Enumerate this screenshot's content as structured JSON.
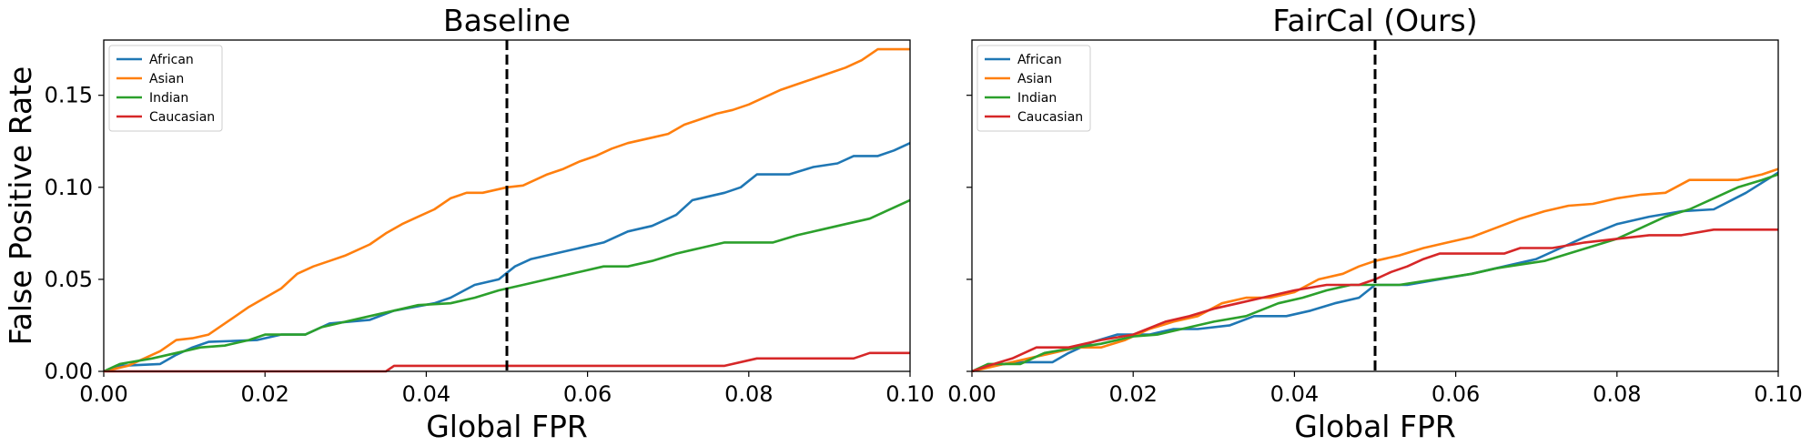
{
  "chart_data": [
    {
      "type": "line",
      "title": "Baseline",
      "xlabel": "Global FPR",
      "ylabel": "False Positive Rate",
      "xlim": [
        0,
        0.1
      ],
      "ylim": [
        0,
        0.18
      ],
      "x_ticks": [
        "0.00",
        "0.02",
        "0.04",
        "0.06",
        "0.08",
        "0.10"
      ],
      "y_ticks": [
        "0.00",
        "0.05",
        "0.10",
        "0.15"
      ],
      "reference_line_x": 0.05,
      "legend_position": "top-left",
      "series": [
        {
          "name": "African",
          "color": "#1f77b4",
          "x": [
            0,
            0.002,
            0.007,
            0.009,
            0.011,
            0.013,
            0.019,
            0.022,
            0.025,
            0.028,
            0.033,
            0.036,
            0.041,
            0.043,
            0.046,
            0.049,
            0.051,
            0.053,
            0.058,
            0.062,
            0.065,
            0.068,
            0.071,
            0.073,
            0.077,
            0.079,
            0.081,
            0.085,
            0.088,
            0.091,
            0.093,
            0.096,
            0.098,
            0.1
          ],
          "y": [
            0,
            0.003,
            0.004,
            0.009,
            0.013,
            0.016,
            0.017,
            0.02,
            0.02,
            0.026,
            0.028,
            0.033,
            0.037,
            0.04,
            0.047,
            0.05,
            0.057,
            0.061,
            0.066,
            0.07,
            0.076,
            0.079,
            0.085,
            0.093,
            0.097,
            0.1,
            0.107,
            0.107,
            0.111,
            0.113,
            0.117,
            0.117,
            0.12,
            0.124
          ]
        },
        {
          "name": "Asian",
          "color": "#ff7f0e",
          "x": [
            0,
            0.003,
            0.007,
            0.009,
            0.011,
            0.013,
            0.016,
            0.018,
            0.02,
            0.022,
            0.024,
            0.026,
            0.028,
            0.03,
            0.033,
            0.035,
            0.037,
            0.039,
            0.041,
            0.043,
            0.045,
            0.047,
            0.05,
            0.052,
            0.055,
            0.057,
            0.059,
            0.061,
            0.063,
            0.065,
            0.068,
            0.07,
            0.072,
            0.074,
            0.076,
            0.078,
            0.08,
            0.082,
            0.084,
            0.086,
            0.088,
            0.09,
            0.092,
            0.094,
            0.096,
            0.1
          ],
          "y": [
            0,
            0.003,
            0.011,
            0.017,
            0.018,
            0.02,
            0.029,
            0.035,
            0.04,
            0.045,
            0.053,
            0.057,
            0.06,
            0.063,
            0.069,
            0.075,
            0.08,
            0.084,
            0.088,
            0.094,
            0.097,
            0.097,
            0.1,
            0.101,
            0.107,
            0.11,
            0.114,
            0.117,
            0.121,
            0.124,
            0.127,
            0.129,
            0.134,
            0.137,
            0.14,
            0.142,
            0.145,
            0.149,
            0.153,
            0.156,
            0.159,
            0.162,
            0.165,
            0.169,
            0.175,
            0.175
          ]
        },
        {
          "name": "Indian",
          "color": "#2ca02c",
          "x": [
            0,
            0.002,
            0.006,
            0.009,
            0.012,
            0.015,
            0.018,
            0.02,
            0.025,
            0.027,
            0.03,
            0.033,
            0.036,
            0.039,
            0.043,
            0.046,
            0.049,
            0.052,
            0.055,
            0.058,
            0.062,
            0.065,
            0.068,
            0.071,
            0.074,
            0.077,
            0.08,
            0.083,
            0.086,
            0.089,
            0.092,
            0.095,
            0.097,
            0.1
          ],
          "y": [
            0,
            0.004,
            0.007,
            0.01,
            0.013,
            0.014,
            0.017,
            0.02,
            0.02,
            0.024,
            0.027,
            0.03,
            0.033,
            0.036,
            0.037,
            0.04,
            0.044,
            0.047,
            0.05,
            0.053,
            0.057,
            0.057,
            0.06,
            0.064,
            0.067,
            0.07,
            0.07,
            0.07,
            0.074,
            0.077,
            0.08,
            0.083,
            0.087,
            0.093
          ]
        },
        {
          "name": "Caucasian",
          "color": "#d62728",
          "x": [
            0,
            0.035,
            0.036,
            0.077,
            0.081,
            0.093,
            0.095,
            0.1
          ],
          "y": [
            0,
            0,
            0.003,
            0.003,
            0.007,
            0.007,
            0.01,
            0.01
          ]
        }
      ]
    },
    {
      "type": "line",
      "title": "FairCal (Ours)",
      "xlabel": "Global FPR",
      "ylabel": "",
      "xlim": [
        0,
        0.1
      ],
      "ylim": [
        0,
        0.18
      ],
      "x_ticks": [
        "0.00",
        "0.02",
        "0.04",
        "0.06",
        "0.08",
        "0.10"
      ],
      "y_ticks": [],
      "reference_line_x": 0.05,
      "legend_position": "top-left",
      "series": [
        {
          "name": "African",
          "color": "#1f77b4",
          "x": [
            0,
            0.002,
            0.006,
            0.01,
            0.012,
            0.015,
            0.018,
            0.022,
            0.025,
            0.028,
            0.032,
            0.035,
            0.039,
            0.042,
            0.045,
            0.048,
            0.05,
            0.054,
            0.058,
            0.062,
            0.066,
            0.07,
            0.073,
            0.076,
            0.08,
            0.084,
            0.088,
            0.092,
            0.096,
            0.1
          ],
          "y": [
            0,
            0.003,
            0.005,
            0.005,
            0.01,
            0.016,
            0.02,
            0.02,
            0.023,
            0.023,
            0.025,
            0.03,
            0.03,
            0.033,
            0.037,
            0.04,
            0.047,
            0.047,
            0.05,
            0.053,
            0.057,
            0.061,
            0.067,
            0.073,
            0.08,
            0.084,
            0.087,
            0.088,
            0.097,
            0.108
          ]
        },
        {
          "name": "Asian",
          "color": "#ff7f0e",
          "x": [
            0,
            0.003,
            0.007,
            0.01,
            0.013,
            0.016,
            0.019,
            0.022,
            0.025,
            0.028,
            0.031,
            0.034,
            0.037,
            0.04,
            0.043,
            0.046,
            0.048,
            0.05,
            0.053,
            0.056,
            0.059,
            0.062,
            0.065,
            0.068,
            0.071,
            0.074,
            0.077,
            0.08,
            0.083,
            0.086,
            0.089,
            0.092,
            0.095,
            0.098,
            0.1
          ],
          "y": [
            0,
            0.003,
            0.007,
            0.01,
            0.013,
            0.013,
            0.017,
            0.023,
            0.027,
            0.03,
            0.037,
            0.04,
            0.04,
            0.043,
            0.05,
            0.053,
            0.057,
            0.06,
            0.063,
            0.067,
            0.07,
            0.073,
            0.078,
            0.083,
            0.087,
            0.09,
            0.091,
            0.094,
            0.096,
            0.097,
            0.104,
            0.104,
            0.104,
            0.107,
            0.11
          ]
        },
        {
          "name": "Indian",
          "color": "#2ca02c",
          "x": [
            0,
            0.002,
            0.006,
            0.009,
            0.013,
            0.016,
            0.02,
            0.023,
            0.026,
            0.03,
            0.034,
            0.038,
            0.041,
            0.044,
            0.047,
            0.05,
            0.053,
            0.056,
            0.059,
            0.062,
            0.065,
            0.068,
            0.071,
            0.074,
            0.077,
            0.08,
            0.083,
            0.086,
            0.089,
            0.092,
            0.095,
            0.098,
            0.1
          ],
          "y": [
            0,
            0.004,
            0.004,
            0.01,
            0.013,
            0.015,
            0.019,
            0.02,
            0.023,
            0.027,
            0.03,
            0.037,
            0.04,
            0.044,
            0.047,
            0.047,
            0.047,
            0.049,
            0.051,
            0.053,
            0.056,
            0.058,
            0.06,
            0.064,
            0.068,
            0.072,
            0.078,
            0.084,
            0.088,
            0.094,
            0.1,
            0.104,
            0.107
          ]
        },
        {
          "name": "Caucasian",
          "color": "#d62728",
          "x": [
            0,
            0.002,
            0.005,
            0.008,
            0.012,
            0.016,
            0.02,
            0.024,
            0.027,
            0.03,
            0.033,
            0.036,
            0.04,
            0.044,
            0.048,
            0.05,
            0.052,
            0.054,
            0.056,
            0.058,
            0.062,
            0.066,
            0.068,
            0.072,
            0.076,
            0.08,
            0.084,
            0.088,
            0.092,
            0.1
          ],
          "y": [
            0,
            0.003,
            0.007,
            0.013,
            0.013,
            0.017,
            0.02,
            0.027,
            0.03,
            0.034,
            0.037,
            0.04,
            0.044,
            0.047,
            0.047,
            0.05,
            0.054,
            0.057,
            0.061,
            0.064,
            0.064,
            0.064,
            0.067,
            0.067,
            0.07,
            0.072,
            0.074,
            0.074,
            0.077,
            0.077
          ]
        }
      ]
    }
  ]
}
